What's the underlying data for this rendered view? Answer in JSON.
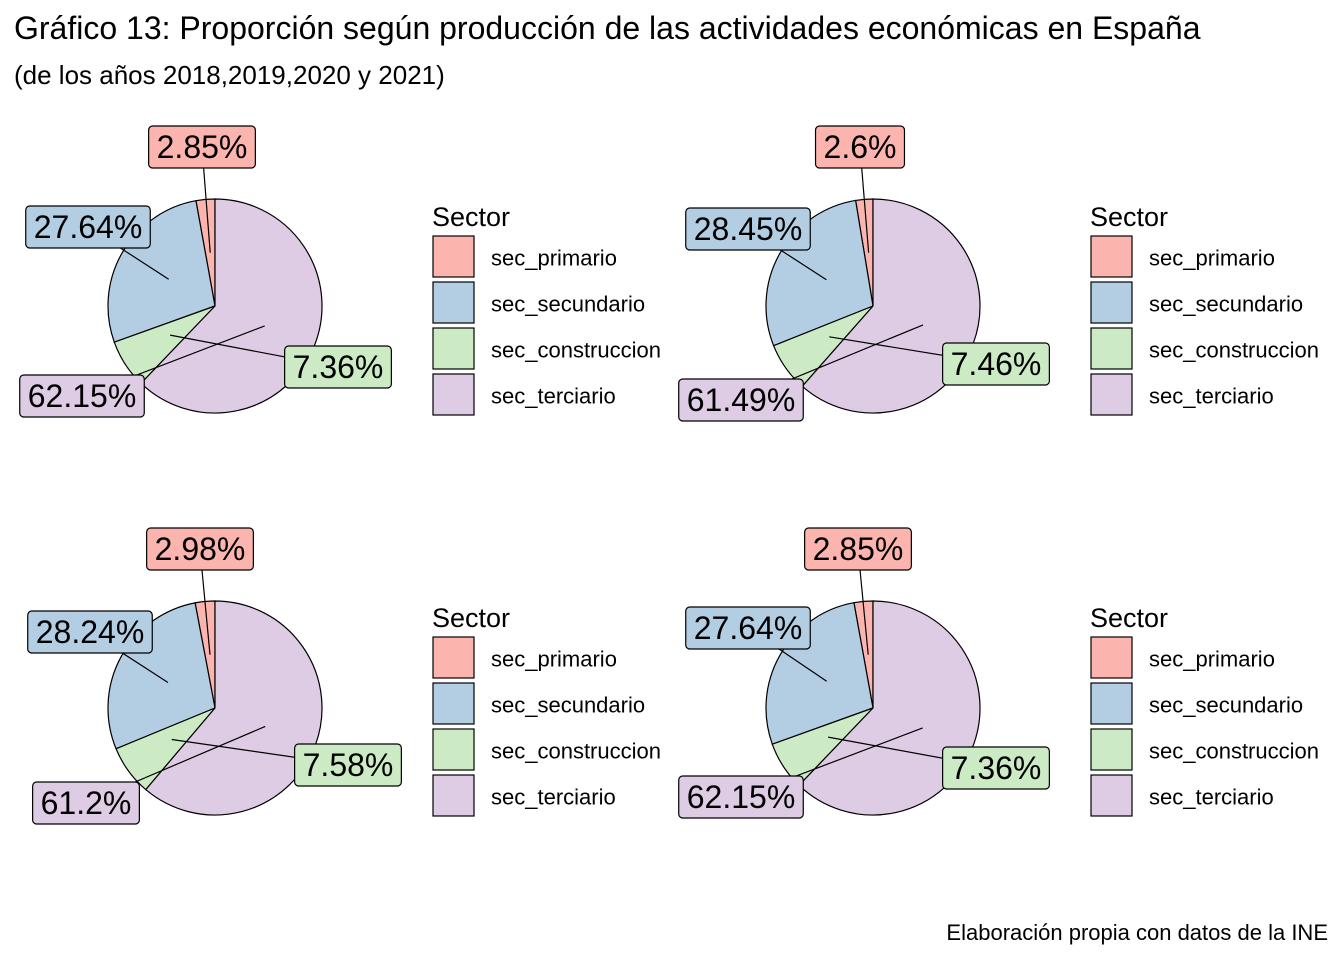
{
  "title": "Gráfico 13: Proporción según producción de las actividades económicas en España",
  "subtitle": "(de los años 2018,2019,2020 y 2021)",
  "caption": "Elaboración propia con datos de la INE",
  "legend": {
    "title": "Sector",
    "items": [
      "sec_primario",
      "sec_secundario",
      "sec_construccion",
      "sec_terciario"
    ]
  },
  "colors": {
    "sec_primario": "#fbb4ae",
    "sec_secundario": "#b3cde3",
    "sec_construccion": "#ccebc5",
    "sec_terciario": "#decbe4"
  },
  "chart_data": [
    {
      "type": "pie",
      "categories": [
        "sec_primario",
        "sec_secundario",
        "sec_construccion",
        "sec_terciario"
      ],
      "values": [
        2.85,
        27.64,
        7.36,
        62.15
      ],
      "labels": [
        "2.85%",
        "27.64%",
        "7.36%",
        "62.15%"
      ]
    },
    {
      "type": "pie",
      "categories": [
        "sec_primario",
        "sec_secundario",
        "sec_construccion",
        "sec_terciario"
      ],
      "values": [
        2.6,
        28.45,
        7.46,
        61.49
      ],
      "labels": [
        "2.6%",
        "28.45%",
        "7.46%",
        "61.49%"
      ]
    },
    {
      "type": "pie",
      "categories": [
        "sec_primario",
        "sec_secundario",
        "sec_construccion",
        "sec_terciario"
      ],
      "values": [
        2.98,
        28.24,
        7.58,
        61.2
      ],
      "labels": [
        "2.98%",
        "28.24%",
        "7.58%",
        "61.2%"
      ]
    },
    {
      "type": "pie",
      "categories": [
        "sec_primario",
        "sec_secundario",
        "sec_construccion",
        "sec_terciario"
      ],
      "values": [
        2.85,
        27.64,
        7.36,
        62.15
      ],
      "labels": [
        "2.85%",
        "27.64%",
        "7.36%",
        "62.15%"
      ]
    }
  ]
}
